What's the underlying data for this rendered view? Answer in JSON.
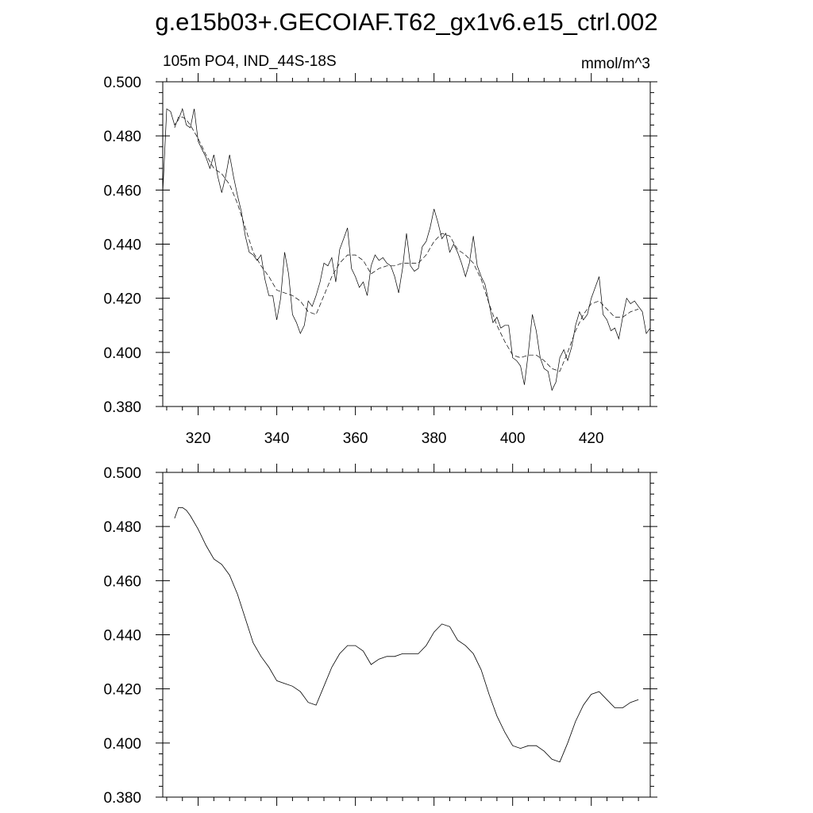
{
  "title": "g.e15b03+.GECOIAF.T62_gx1v6.e15_ctrl.002",
  "chart_data": [
    {
      "type": "line",
      "subtitle_left": "105m PO4, IND_44S-18S",
      "subtitle_right": "mmol/m^3",
      "xlim": [
        311,
        435
      ],
      "ylim": [
        0.38,
        0.5
      ],
      "x_ticks": [
        320,
        340,
        360,
        380,
        400,
        420
      ],
      "x_tick_labels": [
        "320",
        "340",
        "360",
        "380",
        "400",
        "420"
      ],
      "y_ticks": [
        0.38,
        0.4,
        0.42,
        0.44,
        0.46,
        0.48,
        0.5
      ],
      "y_tick_labels": [
        "0.380",
        "0.400",
        "0.420",
        "0.440",
        "0.460",
        "0.480",
        "0.500"
      ],
      "grid": false,
      "series": [
        {
          "style": "solid",
          "x": [
            311,
            312,
            313,
            314,
            315,
            316,
            317,
            318,
            319,
            320,
            321,
            322,
            323,
            324,
            325,
            326,
            327,
            328,
            329,
            330,
            331,
            332,
            333,
            334,
            335,
            336,
            337,
            338,
            339,
            340,
            341,
            342,
            343,
            344,
            345,
            346,
            347,
            348,
            349,
            350,
            351,
            352,
            353,
            354,
            355,
            356,
            357,
            358,
            359,
            360,
            361,
            362,
            363,
            364,
            365,
            366,
            367,
            368,
            369,
            370,
            371,
            372,
            373,
            374,
            375,
            376,
            377,
            378,
            379,
            380,
            381,
            382,
            383,
            384,
            385,
            386,
            387,
            388,
            389,
            390,
            391,
            392,
            393,
            394,
            395,
            396,
            397,
            398,
            399,
            400,
            401,
            402,
            403,
            404,
            405,
            406,
            407,
            408,
            409,
            410,
            411,
            412,
            413,
            414,
            415,
            416,
            417,
            418,
            419,
            420,
            421,
            422,
            423,
            424,
            425,
            426,
            427,
            428,
            429,
            430,
            431,
            432,
            433,
            434,
            435
          ],
          "y": [
            0.459,
            0.49,
            0.489,
            0.484,
            0.486,
            0.49,
            0.484,
            0.483,
            0.49,
            0.478,
            0.475,
            0.472,
            0.468,
            0.473,
            0.465,
            0.459,
            0.465,
            0.473,
            0.465,
            0.458,
            0.452,
            0.443,
            0.437,
            0.436,
            0.434,
            0.436,
            0.427,
            0.421,
            0.421,
            0.412,
            0.42,
            0.437,
            0.429,
            0.414,
            0.411,
            0.407,
            0.41,
            0.419,
            0.417,
            0.421,
            0.426,
            0.433,
            0.432,
            0.435,
            0.426,
            0.438,
            0.442,
            0.446,
            0.431,
            0.428,
            0.424,
            0.426,
            0.421,
            0.432,
            0.436,
            0.434,
            0.435,
            0.433,
            0.432,
            0.428,
            0.422,
            0.431,
            0.444,
            0.432,
            0.43,
            0.431,
            0.439,
            0.441,
            0.446,
            0.453,
            0.448,
            0.442,
            0.444,
            0.437,
            0.44,
            0.437,
            0.433,
            0.428,
            0.433,
            0.443,
            0.432,
            0.428,
            0.425,
            0.418,
            0.411,
            0.413,
            0.409,
            0.41,
            0.41,
            0.398,
            0.397,
            0.395,
            0.388,
            0.4,
            0.414,
            0.408,
            0.398,
            0.394,
            0.393,
            0.386,
            0.389,
            0.398,
            0.401,
            0.397,
            0.402,
            0.41,
            0.415,
            0.412,
            0.414,
            0.42,
            0.424,
            0.428,
            0.414,
            0.412,
            0.408,
            0.409,
            0.405,
            0.413,
            0.42,
            0.418,
            0.419,
            0.417,
            0.415,
            0.407,
            0.409
          ]
        },
        {
          "style": "dashed",
          "x": [
            314,
            315,
            316,
            317,
            318,
            320,
            322,
            324,
            326,
            328,
            330,
            332,
            334,
            336,
            338,
            340,
            342,
            344,
            346,
            348,
            350,
            352,
            354,
            356,
            358,
            360,
            362,
            364,
            366,
            368,
            370,
            372,
            374,
            376,
            378,
            380,
            382,
            384,
            386,
            388,
            390,
            392,
            394,
            396,
            398,
            400,
            402,
            404,
            406,
            408,
            410,
            412,
            414,
            416,
            418,
            420,
            422,
            424,
            426,
            428,
            430,
            432
          ],
          "y": [
            0.483,
            0.487,
            0.487,
            0.486,
            0.484,
            0.479,
            0.473,
            0.468,
            0.466,
            0.462,
            0.455,
            0.446,
            0.437,
            0.432,
            0.428,
            0.423,
            0.422,
            0.421,
            0.419,
            0.415,
            0.414,
            0.421,
            0.428,
            0.433,
            0.436,
            0.436,
            0.434,
            0.429,
            0.431,
            0.432,
            0.432,
            0.433,
            0.433,
            0.433,
            0.436,
            0.441,
            0.444,
            0.443,
            0.438,
            0.436,
            0.433,
            0.427,
            0.418,
            0.41,
            0.404,
            0.399,
            0.398,
            0.399,
            0.399,
            0.397,
            0.394,
            0.393,
            0.4,
            0.408,
            0.414,
            0.418,
            0.419,
            0.416,
            0.413,
            0.413,
            0.415,
            0.416
          ]
        }
      ]
    },
    {
      "type": "line",
      "xlim": [
        311,
        435
      ],
      "ylim": [
        0.38,
        0.5
      ],
      "x_ticks": [
        320,
        340,
        360,
        380,
        400,
        420
      ],
      "y_ticks": [
        0.38,
        0.4,
        0.42,
        0.44,
        0.46,
        0.48,
        0.5
      ],
      "y_tick_labels": [
        "0.380",
        "0.400",
        "0.420",
        "0.440",
        "0.460",
        "0.480",
        "0.500"
      ],
      "grid": false,
      "series": [
        {
          "style": "solid",
          "x": [
            314,
            315,
            316,
            317,
            318,
            320,
            322,
            324,
            326,
            328,
            330,
            332,
            334,
            336,
            338,
            340,
            342,
            344,
            346,
            348,
            350,
            352,
            354,
            356,
            358,
            360,
            362,
            364,
            366,
            368,
            370,
            372,
            374,
            376,
            378,
            380,
            382,
            384,
            386,
            388,
            390,
            392,
            394,
            396,
            398,
            400,
            402,
            404,
            406,
            408,
            410,
            412,
            414,
            416,
            418,
            420,
            422,
            424,
            426,
            428,
            430,
            432
          ],
          "y": [
            0.483,
            0.487,
            0.487,
            0.486,
            0.484,
            0.479,
            0.473,
            0.468,
            0.466,
            0.462,
            0.455,
            0.446,
            0.437,
            0.432,
            0.428,
            0.423,
            0.422,
            0.421,
            0.419,
            0.415,
            0.414,
            0.421,
            0.428,
            0.433,
            0.436,
            0.436,
            0.434,
            0.429,
            0.431,
            0.432,
            0.432,
            0.433,
            0.433,
            0.433,
            0.436,
            0.441,
            0.444,
            0.443,
            0.438,
            0.436,
            0.433,
            0.427,
            0.418,
            0.41,
            0.404,
            0.399,
            0.398,
            0.399,
            0.399,
            0.397,
            0.394,
            0.393,
            0.4,
            0.408,
            0.414,
            0.418,
            0.419,
            0.416,
            0.413,
            0.413,
            0.415,
            0.416
          ]
        }
      ]
    }
  ]
}
